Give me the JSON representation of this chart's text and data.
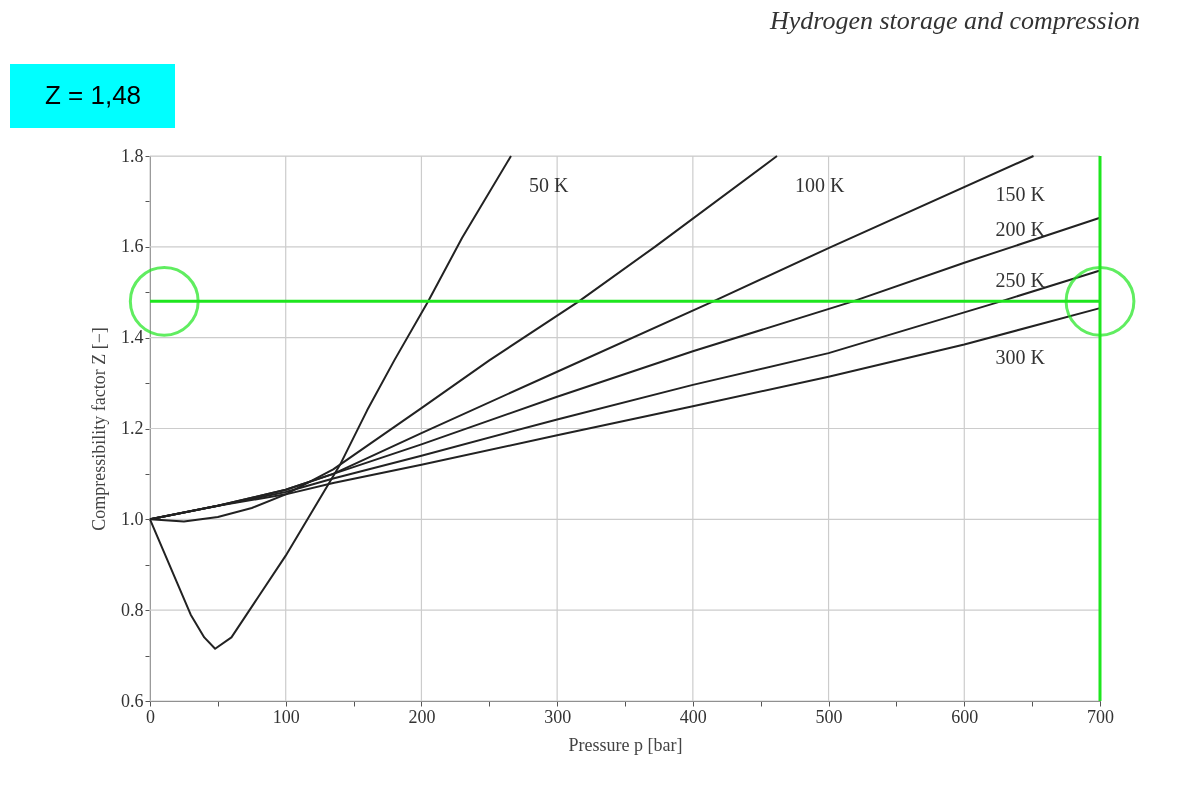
{
  "chart_data": {
    "type": "line",
    "title": "Hydrogen storage and compression",
    "xlabel": "Pressure p [bar]",
    "ylabel": "Compressibility factor Z [−]",
    "xlim": [
      0,
      700
    ],
    "ylim": [
      0.6,
      1.8
    ],
    "xticks": [
      0,
      {
        "value": 50,
        "label": null
      },
      100,
      {
        "value": 150,
        "label": null
      },
      200,
      {
        "value": 250,
        "label": null
      },
      300,
      {
        "value": 350,
        "label": null
      },
      400,
      {
        "value": 450,
        "label": null
      },
      500,
      {
        "value": 550,
        "label": null
      },
      600,
      {
        "value": 650,
        "label": null
      },
      700
    ],
    "yticks": [
      0.6,
      {
        "value": 0.7,
        "label": null
      },
      0.8,
      {
        "value": 0.9,
        "label": null
      },
      {
        "value": 1.0,
        "label": "1.0"
      },
      {
        "value": 1.1,
        "label": null
      },
      1.2,
      {
        "value": 1.3,
        "label": null
      },
      1.4,
      {
        "value": 1.5,
        "label": null
      },
      1.6,
      {
        "value": 1.7,
        "label": null
      },
      1.8
    ],
    "grid": true,
    "marker": "none",
    "line_style": "solid",
    "series": [
      {
        "name": "50 K",
        "color": "#222222",
        "x": [
          0,
          10,
          20,
          30,
          40,
          48,
          60,
          80,
          100,
          120,
          140,
          160,
          180,
          205,
          230,
          266
        ],
        "values": [
          1.0,
          0.93,
          0.86,
          0.79,
          0.74,
          0.715,
          0.74,
          0.83,
          0.92,
          1.02,
          1.12,
          1.24,
          1.35,
          1.48,
          1.62,
          1.8
        ]
      },
      {
        "name": "100 K",
        "color": "#222222",
        "x": [
          0,
          25,
          50,
          75,
          100,
          135,
          200,
          250,
          316,
          372,
          462
        ],
        "values": [
          1.0,
          0.995,
          1.005,
          1.025,
          1.055,
          1.11,
          1.245,
          1.35,
          1.48,
          1.6,
          1.8
        ]
      },
      {
        "name": "150 K",
        "color": "#222222",
        "x": [
          0,
          50,
          100,
          135,
          200,
          300,
          415,
          502,
          651
        ],
        "values": [
          1.0,
          1.03,
          1.065,
          1.1,
          1.19,
          1.325,
          1.48,
          1.6,
          1.8
        ]
      },
      {
        "name": "200 K",
        "color": "#222222",
        "x": [
          0,
          50,
          100,
          135,
          200,
          300,
          400,
          518,
          600,
          700
        ],
        "values": [
          1.0,
          1.03,
          1.065,
          1.1,
          1.165,
          1.27,
          1.37,
          1.48,
          1.565,
          1.664
        ]
      },
      {
        "name": "250 K",
        "color": "#222222",
        "x": [
          0,
          50,
          100,
          135,
          200,
          300,
          400,
          500,
          627,
          700
        ],
        "values": [
          1.0,
          1.03,
          1.06,
          1.09,
          1.14,
          1.22,
          1.296,
          1.366,
          1.48,
          1.548
        ]
      },
      {
        "name": "300 K",
        "color": "#222222",
        "x": [
          0,
          50,
          100,
          135,
          200,
          300,
          400,
          500,
          600,
          700
        ],
        "values": [
          1.0,
          1.03,
          1.055,
          1.08,
          1.12,
          1.185,
          1.249,
          1.314,
          1.385,
          1.465
        ]
      }
    ],
    "ref_lines": [
      {
        "axis": "y",
        "value": 1.48,
        "color": "#1ee61e"
      },
      {
        "axis": "x",
        "value": 700,
        "color": "#1ee61e"
      }
    ],
    "annotations": [
      "Z = 1,48"
    ]
  }
}
